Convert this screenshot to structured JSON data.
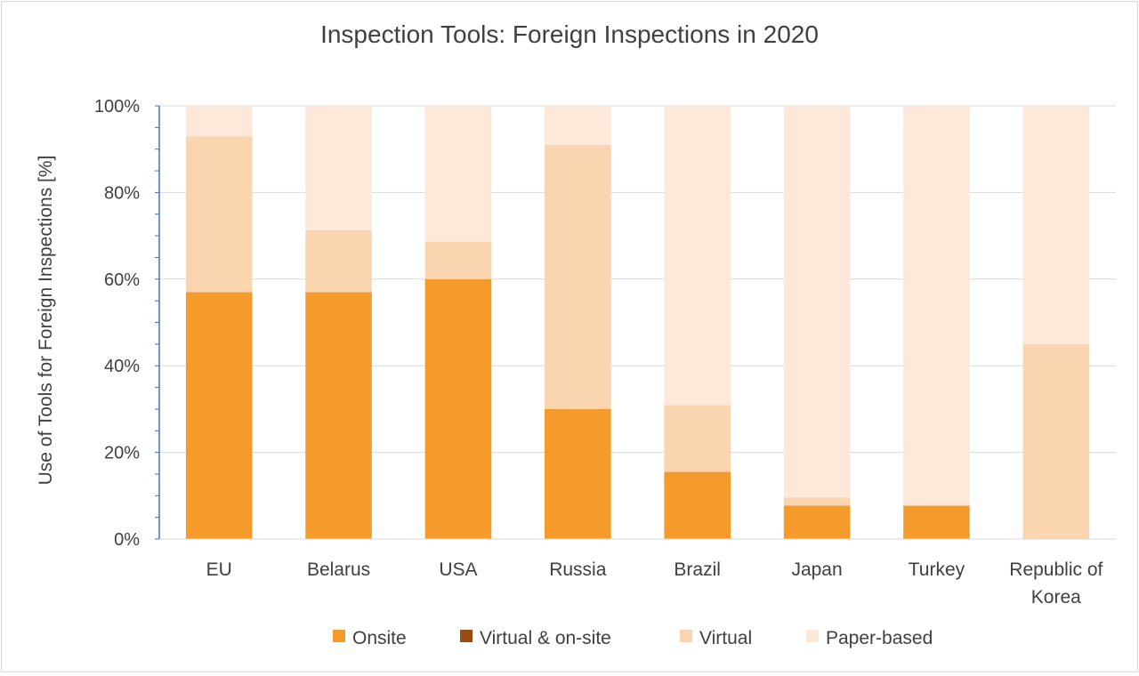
{
  "chart_data": {
    "type": "bar",
    "stacked": true,
    "title": "Inspection Tools: Foreign Inspections in 2020",
    "xlabel": "",
    "ylabel": "Use of Tools for Foreign Inspections [%]",
    "ylim": [
      0,
      100
    ],
    "yticks": [
      "0%",
      "20%",
      "40%",
      "60%",
      "80%",
      "100%"
    ],
    "categories": [
      "EU",
      "Belarus",
      "USA",
      "Russia",
      "Brazil",
      "Japan",
      "Turkey",
      "Republic of Korea"
    ],
    "series": [
      {
        "name": "Onsite",
        "color": "#f59b2b",
        "values": [
          57,
          57,
          60,
          30,
          15.5,
          7.7,
          7.7,
          0
        ]
      },
      {
        "name": "Virtual & on-site",
        "color": "#9c4b12",
        "values": [
          0,
          0,
          0,
          0,
          0,
          0,
          0,
          0
        ]
      },
      {
        "name": "Virtual",
        "color": "#fbd4b0",
        "values": [
          36,
          14.3,
          8.6,
          61,
          15.4,
          1.9,
          0,
          45
        ]
      },
      {
        "name": "Paper-based",
        "color": "#fde8da",
        "values": [
          7,
          28.7,
          31.4,
          9,
          69.1,
          90.4,
          92.3,
          55
        ]
      }
    ],
    "grid": true,
    "legend": "bottom"
  }
}
